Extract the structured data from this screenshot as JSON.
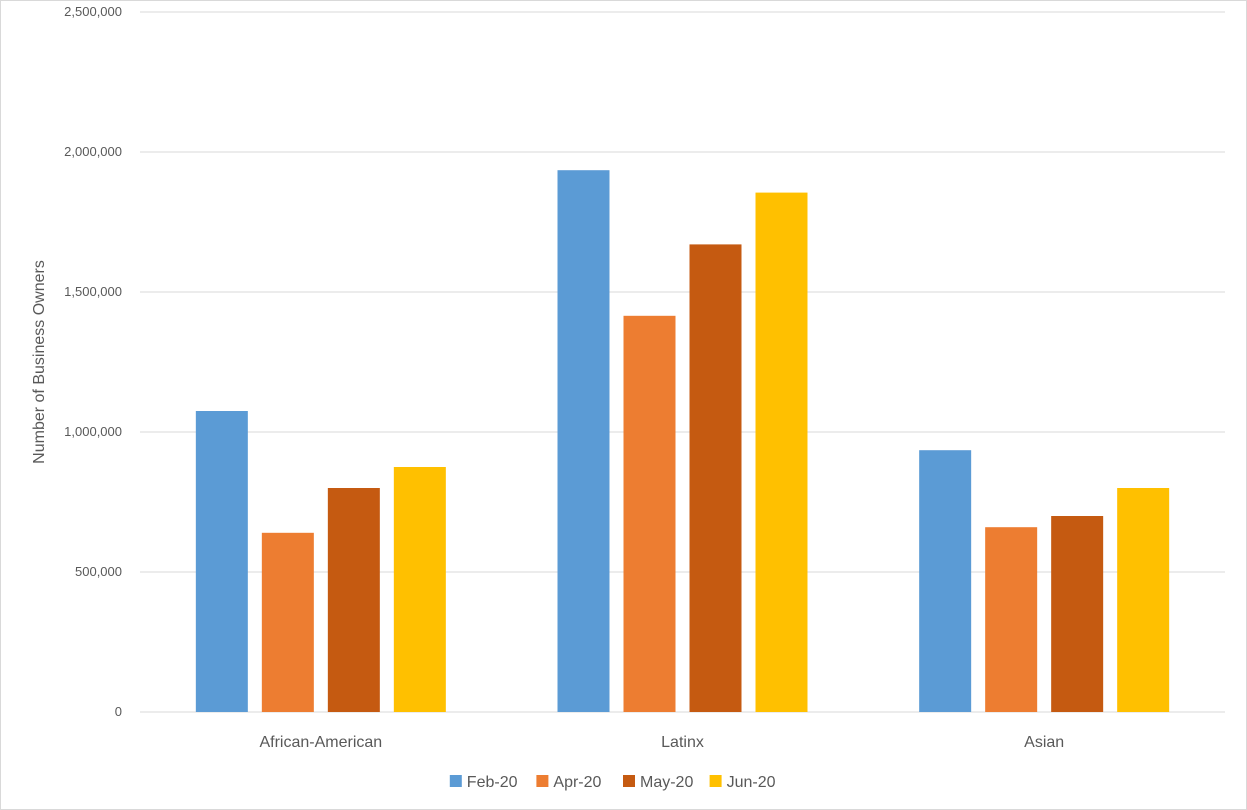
{
  "chart_data": {
    "type": "bar",
    "title": "",
    "xlabel": "",
    "ylabel": "Number of Business Owners",
    "ylim": [
      0,
      2500000
    ],
    "yticks": [
      0,
      500000,
      1000000,
      1500000,
      2000000,
      2500000
    ],
    "ytick_labels": [
      "0",
      "500,000",
      "1,000,000",
      "1,500,000",
      "2,000,000",
      "2,500,000"
    ],
    "grid": true,
    "legend_position": "bottom",
    "categories": [
      "African-American",
      "Latinx",
      "Asian"
    ],
    "series": [
      {
        "name": "Feb-20",
        "color": "#5b9bd5",
        "values": [
          1075000,
          1935000,
          935000
        ]
      },
      {
        "name": "Apr-20",
        "color": "#ed7d31",
        "values": [
          640000,
          1415000,
          660000
        ]
      },
      {
        "name": "May-20",
        "color": "#c55a11",
        "values": [
          800000,
          1670000,
          700000
        ]
      },
      {
        "name": "Jun-20",
        "color": "#ffc000",
        "values": [
          875000,
          1855000,
          800000
        ]
      }
    ]
  }
}
